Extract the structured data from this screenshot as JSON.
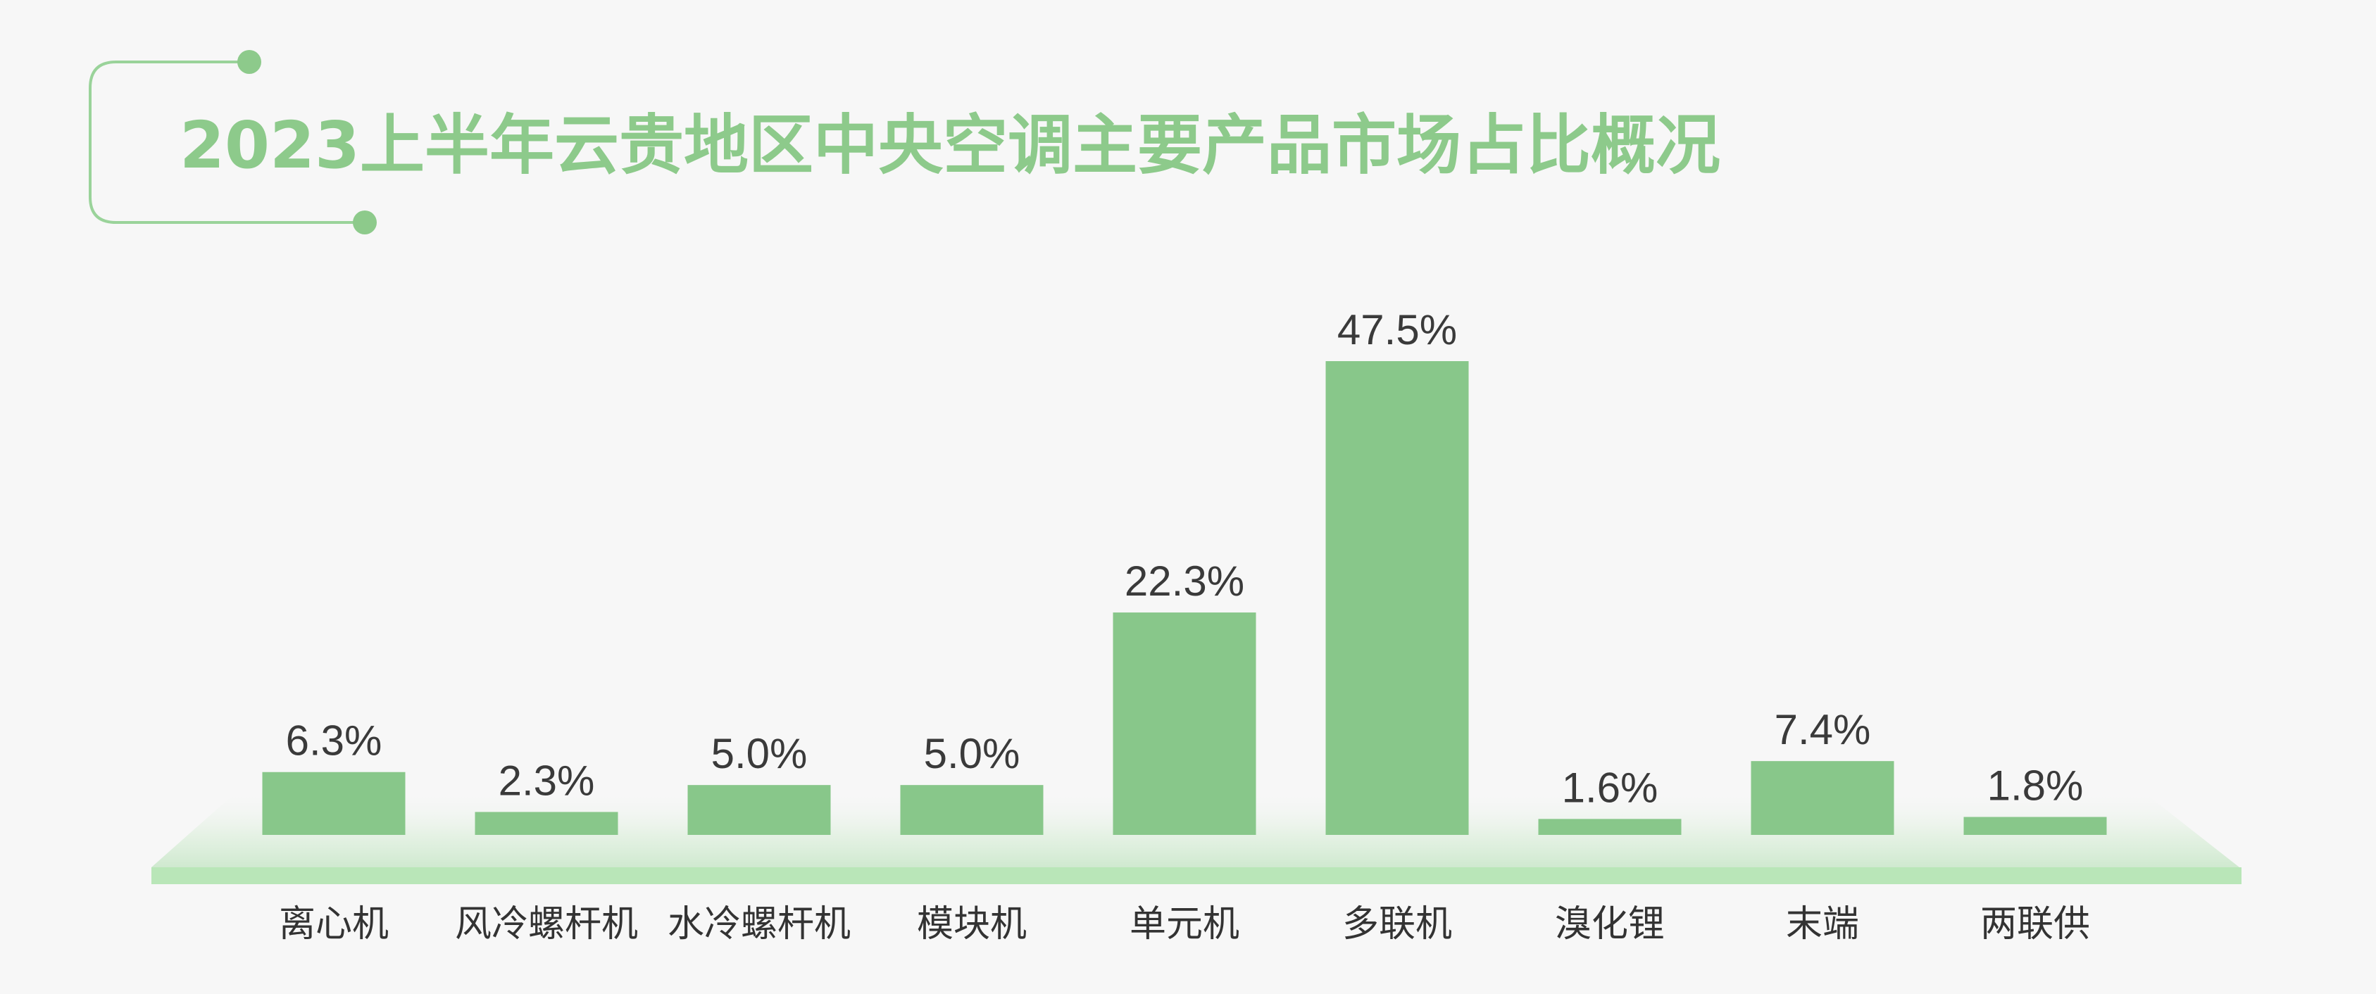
{
  "colors": {
    "background": "#f7f7f7",
    "bar": "#88c78a",
    "title": "#8dca8b",
    "accent_line": "#9ad39a",
    "platform": "#b9e6b8",
    "label_text": "#3a3a3a"
  },
  "chart_data": {
    "type": "bar",
    "title": "2023上半年云贵地区中央空调主要产品市场占比概况",
    "xlabel": "",
    "ylabel": "",
    "unit": "%",
    "categories": [
      "离心机",
      "风冷螺杆机",
      "水冷螺杆机",
      "模块机",
      "单元机",
      "多联机",
      "溴化锂",
      "末端",
      "两联供"
    ],
    "values": [
      6.3,
      2.3,
      5.0,
      5.0,
      22.3,
      47.5,
      1.6,
      7.4,
      1.8
    ],
    "value_labels": [
      "6.3%",
      "2.3%",
      "5.0%",
      "5.0%",
      "22.3%",
      "47.5%",
      "1.6%",
      "7.4%",
      "1.8%"
    ],
    "ylim": [
      0,
      50
    ],
    "grid": false,
    "legend": "none"
  }
}
